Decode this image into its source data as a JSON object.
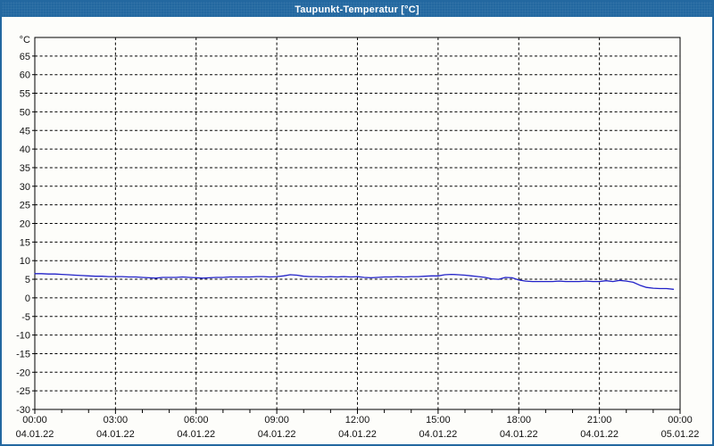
{
  "window": {
    "title": "Taupunkt-Temperatur [°C]",
    "title_bar_color": "#2368a0",
    "border_color": "#2368a0",
    "background_color": "#fdfdfa"
  },
  "chart_data": {
    "type": "line",
    "title": "Taupunkt-Temperatur [°C]",
    "y_unit_label": "°C",
    "ylim": [
      -30,
      70
    ],
    "ytick_step": 5,
    "ytick_labels": [
      65,
      60,
      55,
      50,
      45,
      40,
      35,
      30,
      25,
      20,
      15,
      10,
      5,
      0,
      -5,
      -10,
      -15,
      -20,
      -25,
      -30
    ],
    "x_span_hours": 24,
    "x_minor_tick_every_hours": 1,
    "grid_style": "dashed-black",
    "grid_color": "#000000",
    "axis_color": "#000000",
    "text_color": "#111111",
    "line_color": "#2121c8",
    "x_major_ticks": [
      {
        "hour": 0,
        "time": "00:00",
        "date": "04.01.22"
      },
      {
        "hour": 3,
        "time": "03:00",
        "date": "04.01.22"
      },
      {
        "hour": 6,
        "time": "06:00",
        "date": "04.01.22"
      },
      {
        "hour": 9,
        "time": "09:00",
        "date": "04.01.22"
      },
      {
        "hour": 12,
        "time": "12:00",
        "date": "04.01.22"
      },
      {
        "hour": 15,
        "time": "15:00",
        "date": "04.01.22"
      },
      {
        "hour": 18,
        "time": "18:00",
        "date": "04.01.22"
      },
      {
        "hour": 21,
        "time": "21:00",
        "date": "04.01.22"
      },
      {
        "hour": 24,
        "time": "00:00",
        "date": "05.01.22"
      }
    ],
    "series": [
      {
        "name": "Taupunkt-Temperatur",
        "unit": "°C",
        "points": [
          [
            "00:00",
            6.5
          ],
          [
            "00:15",
            6.5
          ],
          [
            "00:30",
            6.4
          ],
          [
            "00:45",
            6.4
          ],
          [
            "01:00",
            6.3
          ],
          [
            "01:15",
            6.2
          ],
          [
            "01:30",
            6.1
          ],
          [
            "01:45",
            6.0
          ],
          [
            "02:00",
            5.9
          ],
          [
            "02:15",
            5.8
          ],
          [
            "02:30",
            5.8
          ],
          [
            "02:45",
            5.7
          ],
          [
            "03:00",
            5.7
          ],
          [
            "03:15",
            5.7
          ],
          [
            "03:30",
            5.6
          ],
          [
            "03:45",
            5.6
          ],
          [
            "04:00",
            5.5
          ],
          [
            "04:15",
            5.4
          ],
          [
            "04:30",
            5.3
          ],
          [
            "04:45",
            5.5
          ],
          [
            "05:00",
            5.5
          ],
          [
            "05:15",
            5.5
          ],
          [
            "05:30",
            5.6
          ],
          [
            "05:45",
            5.5
          ],
          [
            "06:00",
            5.4
          ],
          [
            "06:15",
            5.3
          ],
          [
            "06:30",
            5.4
          ],
          [
            "06:45",
            5.5
          ],
          [
            "07:00",
            5.5
          ],
          [
            "07:15",
            5.6
          ],
          [
            "07:30",
            5.6
          ],
          [
            "07:45",
            5.6
          ],
          [
            "08:00",
            5.6
          ],
          [
            "08:15",
            5.7
          ],
          [
            "08:30",
            5.7
          ],
          [
            "08:45",
            5.6
          ],
          [
            "09:00",
            5.7
          ],
          [
            "09:15",
            5.9
          ],
          [
            "09:30",
            6.2
          ],
          [
            "09:45",
            6.1
          ],
          [
            "10:00",
            5.8
          ],
          [
            "10:15",
            5.7
          ],
          [
            "10:30",
            5.7
          ],
          [
            "10:45",
            5.6
          ],
          [
            "11:00",
            5.7
          ],
          [
            "11:15",
            5.6
          ],
          [
            "11:30",
            5.7
          ],
          [
            "11:45",
            5.6
          ],
          [
            "12:00",
            5.7
          ],
          [
            "12:15",
            5.5
          ],
          [
            "12:30",
            5.4
          ],
          [
            "12:45",
            5.5
          ],
          [
            "13:00",
            5.6
          ],
          [
            "13:15",
            5.6
          ],
          [
            "13:30",
            5.7
          ],
          [
            "13:45",
            5.6
          ],
          [
            "14:00",
            5.7
          ],
          [
            "14:15",
            5.7
          ],
          [
            "14:30",
            5.8
          ],
          [
            "14:45",
            5.9
          ],
          [
            "15:00",
            5.9
          ],
          [
            "15:15",
            6.2
          ],
          [
            "15:30",
            6.3
          ],
          [
            "15:45",
            6.2
          ],
          [
            "16:00",
            6.1
          ],
          [
            "16:15",
            5.9
          ],
          [
            "16:30",
            5.7
          ],
          [
            "16:45",
            5.5
          ],
          [
            "17:00",
            5.1
          ],
          [
            "17:15",
            5.0
          ],
          [
            "17:30",
            5.5
          ],
          [
            "17:45",
            5.4
          ],
          [
            "18:00",
            4.8
          ],
          [
            "18:15",
            4.5
          ],
          [
            "18:30",
            4.4
          ],
          [
            "18:45",
            4.4
          ],
          [
            "19:00",
            4.4
          ],
          [
            "19:15",
            4.4
          ],
          [
            "19:30",
            4.5
          ],
          [
            "19:45",
            4.4
          ],
          [
            "20:00",
            4.4
          ],
          [
            "20:15",
            4.4
          ],
          [
            "20:30",
            4.5
          ],
          [
            "20:45",
            4.4
          ],
          [
            "21:00",
            4.4
          ],
          [
            "21:15",
            4.6
          ],
          [
            "21:30",
            4.4
          ],
          [
            "21:45",
            4.7
          ],
          [
            "22:00",
            4.5
          ],
          [
            "22:15",
            4.2
          ],
          [
            "22:30",
            3.4
          ],
          [
            "22:45",
            2.8
          ],
          [
            "23:00",
            2.6
          ],
          [
            "23:15",
            2.5
          ],
          [
            "23:30",
            2.5
          ],
          [
            "23:45",
            2.3
          ]
        ]
      }
    ]
  }
}
